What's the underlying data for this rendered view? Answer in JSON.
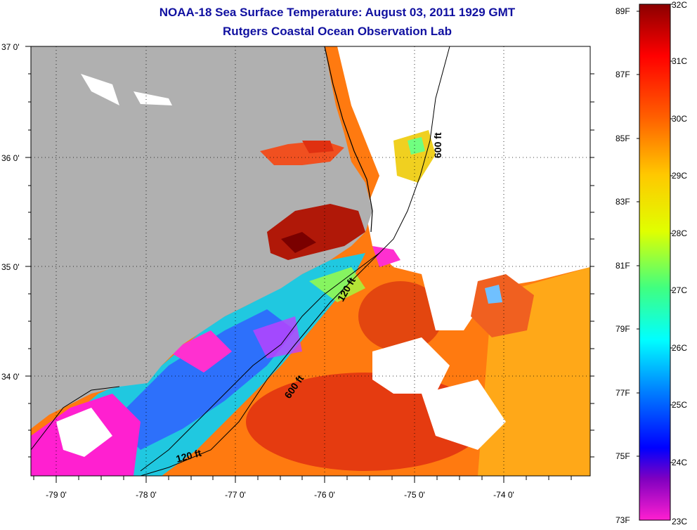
{
  "title": {
    "line1": "NOAA-18 Sea Surface Temperature:  August 03, 2011 1929 GMT",
    "line2": "Rutgers Coastal Ocean Observation Lab"
  },
  "axes": {
    "lat_labels": [
      "37 0'",
      "36 0'",
      "35 0'",
      "34 0'"
    ],
    "lon_labels": [
      "-79 0'",
      "-78 0'",
      "-77 0'",
      "-76 0'",
      "-75 0'",
      "-74 0'"
    ]
  },
  "contours": {
    "c600_top": "600 ft",
    "c120_mid": "120 ft",
    "c600_mid": "600 ft",
    "c120_bot": "120 ft"
  },
  "colorbar": {
    "fahrenheit": [
      "89F",
      "87F",
      "85F",
      "83F",
      "81F",
      "79F",
      "77F",
      "75F",
      "73F"
    ],
    "celsius": [
      "32C",
      "31C",
      "30C",
      "29C",
      "28C",
      "27C",
      "26C",
      "25C",
      "24C",
      "23C"
    ],
    "range_c": [
      23,
      32
    ]
  },
  "colors": {
    "land": "#b0b0b0",
    "no_data": "#ffffff",
    "hot": "#8b0000",
    "cold": "#ff1fd0",
    "title": "#1010a0"
  }
}
